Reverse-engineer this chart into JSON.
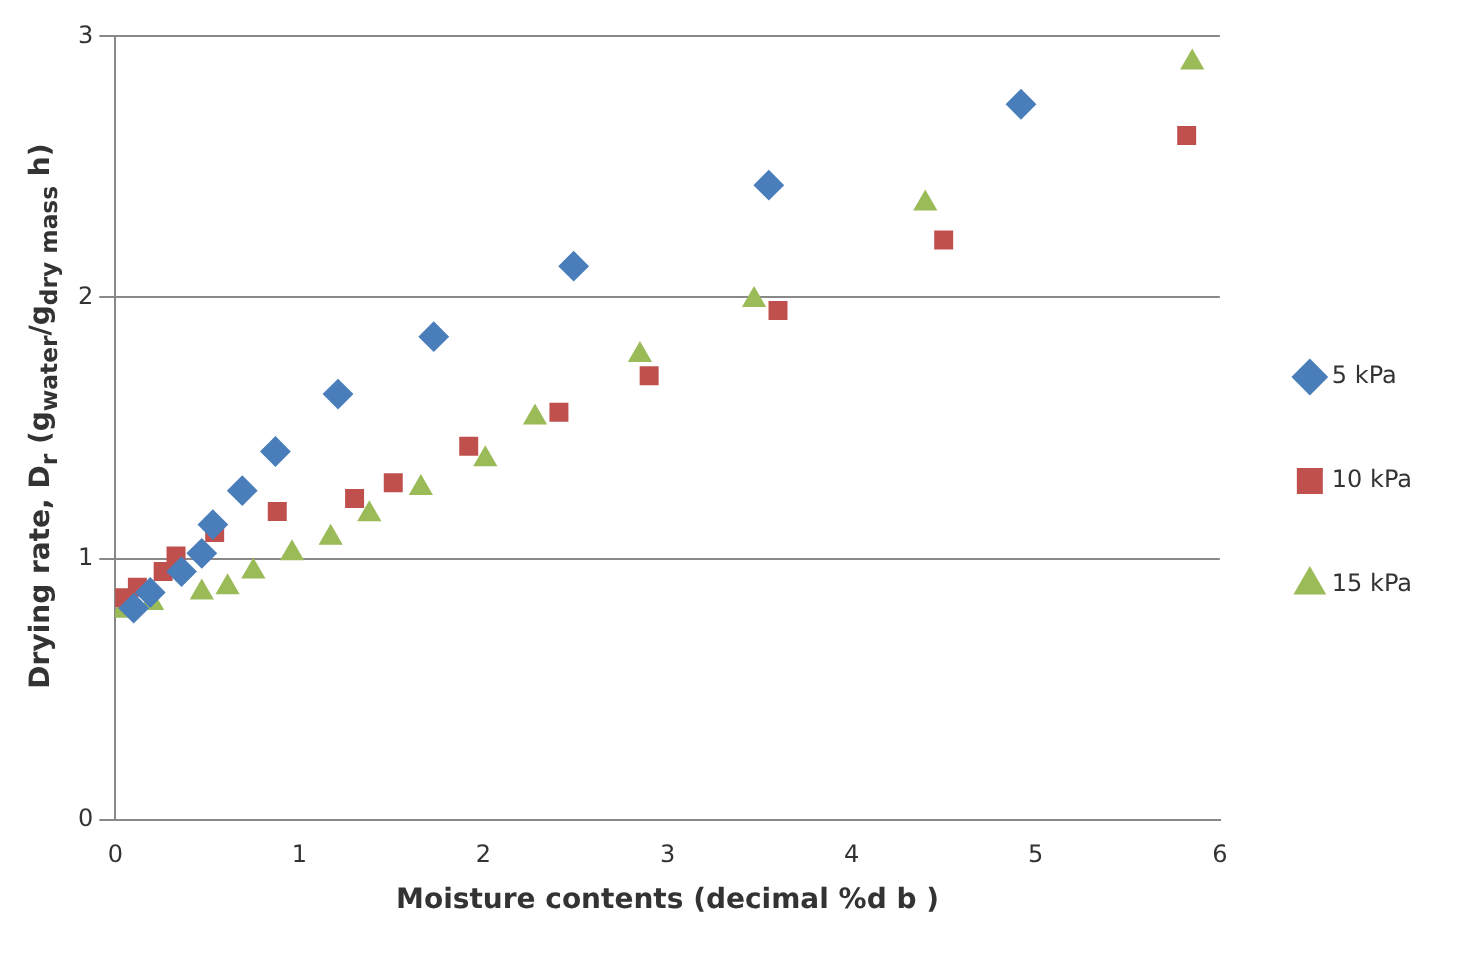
{
  "chart_data": {
    "type": "scatter",
    "xlabel": "Moisture contents (decimal %d b )",
    "ylabel": "Drying rate, D$_{r}$  (g$_{water}$/g$_{dry mass}$ h)",
    "xlim": [
      0,
      6
    ],
    "xticks": [
      0,
      1,
      2,
      3,
      4,
      5,
      6
    ],
    "ylim": [
      0,
      3
    ],
    "yticks": [
      0,
      1,
      2,
      3
    ],
    "grid": "y",
    "legend": "right",
    "series": [
      {
        "name": "5 kPa",
        "color": "#4a7ebb",
        "marker": "diamond",
        "x": [
          0.1,
          0.19,
          0.36,
          0.47,
          0.53,
          0.69,
          0.87,
          1.21,
          1.73,
          2.49,
          3.55,
          4.92
        ],
        "values": [
          0.81,
          0.87,
          0.95,
          1.02,
          1.13,
          1.26,
          1.41,
          1.63,
          1.85,
          2.12,
          2.43,
          2.74
        ]
      },
      {
        "name": "10 kPa",
        "color": "#c0504d",
        "marker": "square",
        "x": [
          0.03,
          0.12,
          0.26,
          0.33,
          0.54,
          0.88,
          1.3,
          1.51,
          1.92,
          2.41,
          2.9,
          3.6,
          4.5,
          5.82
        ],
        "values": [
          0.85,
          0.89,
          0.95,
          1.01,
          1.1,
          1.18,
          1.23,
          1.29,
          1.43,
          1.56,
          1.7,
          1.95,
          2.22,
          2.62
        ]
      },
      {
        "name": "15 kPa",
        "color": "#9bbb59",
        "marker": "triangle",
        "x": [
          0.04,
          0.2,
          0.47,
          0.61,
          0.75,
          0.96,
          1.17,
          1.38,
          1.66,
          2.01,
          2.28,
          2.85,
          3.47,
          4.4,
          5.85
        ],
        "values": [
          0.8,
          0.83,
          0.87,
          0.89,
          0.95,
          1.02,
          1.08,
          1.17,
          1.27,
          1.38,
          1.54,
          1.78,
          1.99,
          2.36,
          2.9
        ]
      }
    ]
  }
}
